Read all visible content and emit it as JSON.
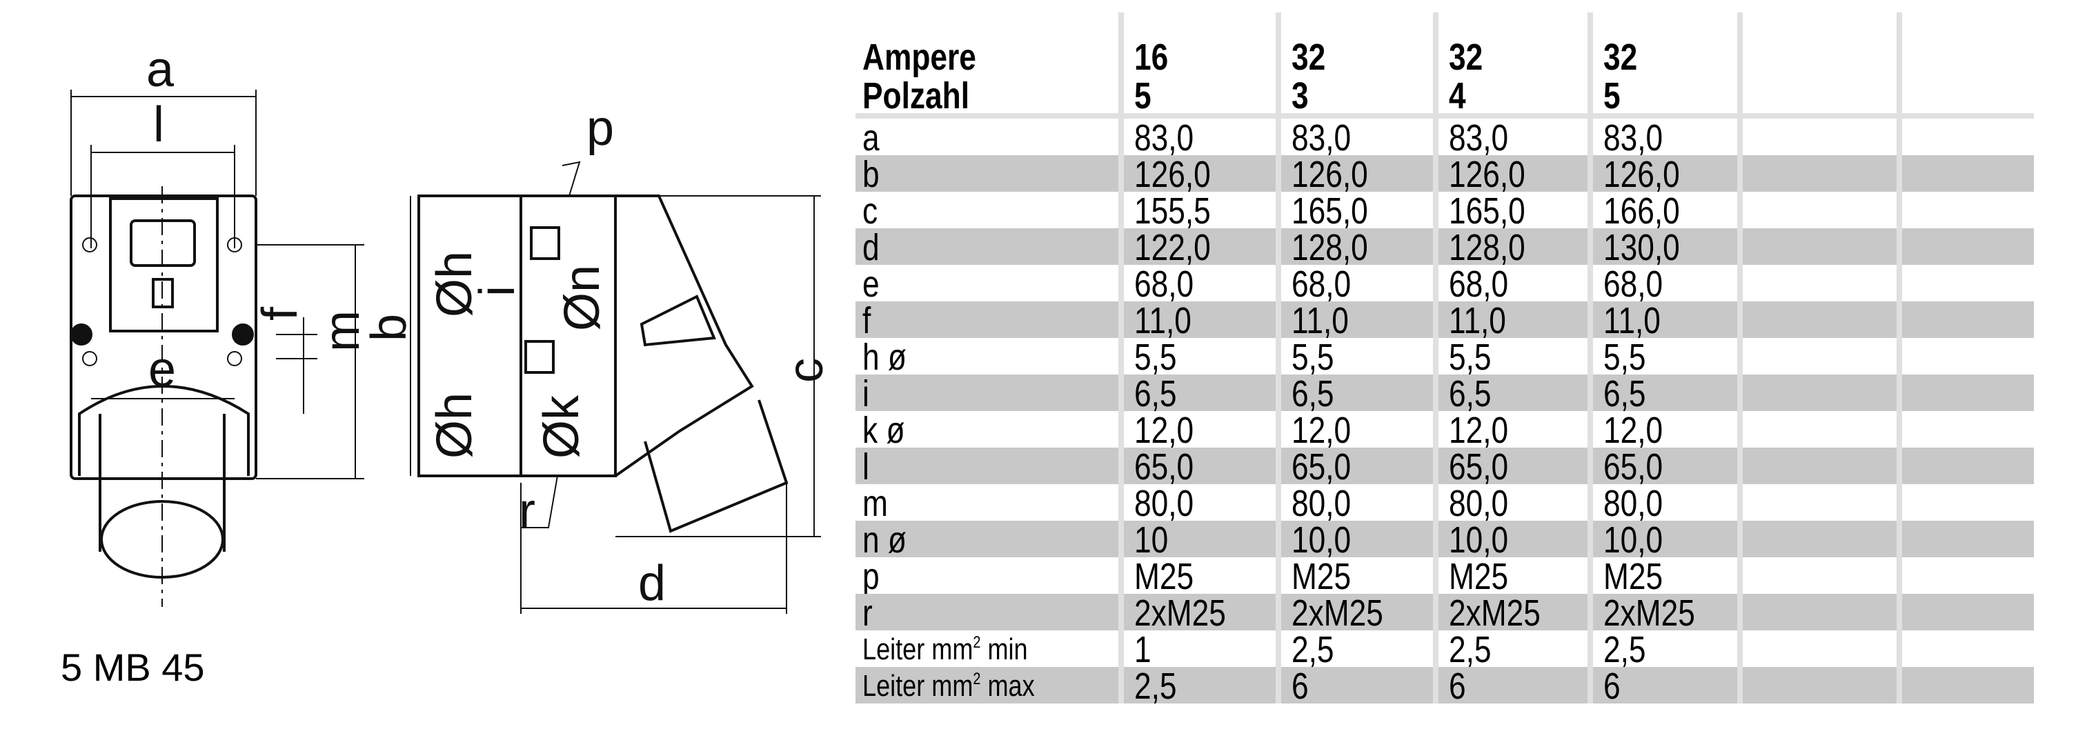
{
  "drawing": {
    "model": "5 MB 45",
    "labels": {
      "a": "a",
      "l": "l",
      "e": "e",
      "f": "f",
      "m": "m",
      "b": "b",
      "p": "p",
      "c": "c",
      "d": "d",
      "r": "r",
      "h1": "Øh",
      "h2": "Øh",
      "i": "i",
      "n": "Øn",
      "k": "Øk"
    }
  },
  "table": {
    "header": {
      "row1_label": "Ampere",
      "row2_label": "Polzahl",
      "columns": [
        {
          "ampere": "16",
          "polzahl": "5"
        },
        {
          "ampere": "32",
          "polzahl": "3"
        },
        {
          "ampere": "32",
          "polzahl": "4"
        },
        {
          "ampere": "32",
          "polzahl": "5"
        }
      ]
    },
    "rows": [
      {
        "label": "a",
        "values": [
          "83,0",
          "83,0",
          "83,0",
          "83,0"
        ]
      },
      {
        "label": "b",
        "values": [
          "126,0",
          "126,0",
          "126,0",
          "126,0"
        ]
      },
      {
        "label": "c",
        "values": [
          "155,5",
          "165,0",
          "165,0",
          "166,0"
        ]
      },
      {
        "label": "d",
        "values": [
          "122,0",
          "128,0",
          "128,0",
          "130,0"
        ]
      },
      {
        "label": "e",
        "values": [
          "68,0",
          "68,0",
          "68,0",
          "68,0"
        ]
      },
      {
        "label": "f",
        "values": [
          "11,0",
          "11,0",
          "11,0",
          "11,0"
        ]
      },
      {
        "label": "h ø",
        "values": [
          "5,5",
          "5,5",
          "5,5",
          "5,5"
        ]
      },
      {
        "label": "i",
        "values": [
          "6,5",
          "6,5",
          "6,5",
          "6,5"
        ]
      },
      {
        "label": "k ø",
        "values": [
          "12,0",
          "12,0",
          "12,0",
          "12,0"
        ]
      },
      {
        "label": "l",
        "values": [
          "65,0",
          "65,0",
          "65,0",
          "65,0"
        ]
      },
      {
        "label": "m",
        "values": [
          "80,0",
          "80,0",
          "80,0",
          "80,0"
        ]
      },
      {
        "label": "n ø",
        "values": [
          "10",
          "10,0",
          "10,0",
          "10,0"
        ]
      },
      {
        "label": "p",
        "values": [
          "M25",
          "M25",
          "M25",
          "M25"
        ]
      },
      {
        "label": "r",
        "values": [
          "2xM25",
          "2xM25",
          "2xM25",
          "2xM25"
        ]
      },
      {
        "label": "Leiter mm",
        "sup": "2",
        "suffix": " min",
        "values": [
          "1",
          "2,5",
          "2,5",
          "2,5"
        ]
      },
      {
        "label": "Leiter mm",
        "sup": "2",
        "suffix": " max",
        "values": [
          "2,5",
          "6",
          "6",
          "6"
        ]
      }
    ],
    "colors": {
      "stripe": "#c8c8c8",
      "grid": "#e0e0e0"
    }
  }
}
